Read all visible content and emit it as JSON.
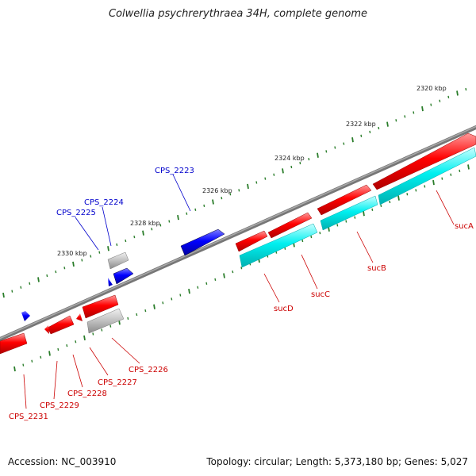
{
  "title": "Colwellia psychrerythraea 34H, complete genome",
  "footer": {
    "accession": "Accession: NC_003910",
    "summary": "Topology: circular; Length: 5,373,180 bp; Genes: 5,027"
  },
  "colors": {
    "forward_gene": "#ee0000",
    "reverse_gene": "#0000dd",
    "rna_like": "#00dddd",
    "pseudo_gene": "#aaaaaa",
    "backbone": "#808080",
    "tick": "#2a7d2a",
    "label_red": "#cc0000",
    "label_blue": "#0000cc"
  },
  "ticks": [
    {
      "label": "2320 kbp"
    },
    {
      "label": "2322 kbp"
    },
    {
      "label": "2324 kbp"
    },
    {
      "label": "2326 kbp"
    },
    {
      "label": "2328 kbp"
    },
    {
      "label": "2330 kbp"
    }
  ],
  "genes": [
    {
      "name": "sucA",
      "color": "red"
    },
    {
      "name": "sucB",
      "color": "red"
    },
    {
      "name": "sucC",
      "color": "red"
    },
    {
      "name": "sucD",
      "color": "red"
    },
    {
      "name": "CPS_2223",
      "color": "blue"
    },
    {
      "name": "CPS_2224",
      "color": "blue"
    },
    {
      "name": "CPS_2225",
      "color": "blue"
    },
    {
      "name": "CPS_2226",
      "color": "red"
    },
    {
      "name": "CPS_2227",
      "color": "red"
    },
    {
      "name": "CPS_2228",
      "color": "red"
    },
    {
      "name": "CPS_2229",
      "color": "red"
    },
    {
      "name": "CPS_2231",
      "color": "red"
    }
  ]
}
